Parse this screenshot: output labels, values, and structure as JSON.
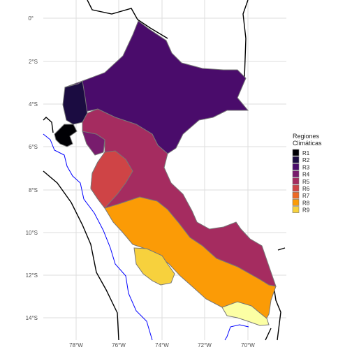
{
  "map": {
    "y_ticks": [
      "0°",
      "2°S",
      "4°S",
      "6°S",
      "8°S",
      "10°S",
      "12°S",
      "14°S"
    ],
    "x_ticks": [
      "78°W",
      "76°W",
      "74°W",
      "72°W",
      "70°W"
    ],
    "legend": {
      "title_line1": "Regiones",
      "title_line2": "Climáticas",
      "items": [
        {
          "label": "R1",
          "color": "#000004"
        },
        {
          "label": "R2",
          "color": "#1b0c41"
        },
        {
          "label": "R3",
          "color": "#4a0c6b"
        },
        {
          "label": "R4",
          "color": "#781c6d"
        },
        {
          "label": "R5",
          "color": "#a52c60"
        },
        {
          "label": "R6",
          "color": "#cf4446"
        },
        {
          "label": "R7",
          "color": "#ed6925"
        },
        {
          "label": "R8",
          "color": "#fb9b06"
        },
        {
          "label": "R9",
          "color": "#f7d13d"
        }
      ]
    },
    "colors": {
      "grid": "#dedede",
      "panel": "#ffffff",
      "border_line": "#000000",
      "river": "#0000ff",
      "region_outline": "#777777"
    }
  }
}
